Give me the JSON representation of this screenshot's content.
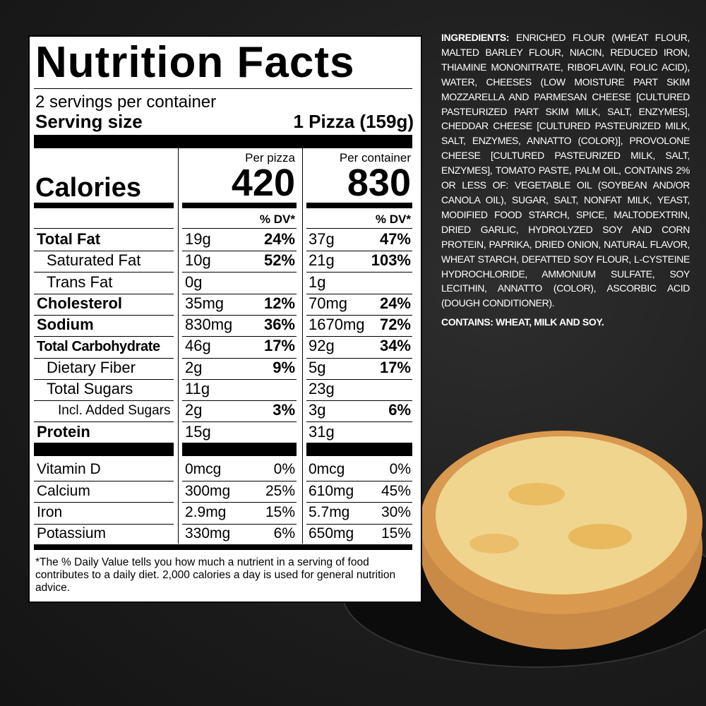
{
  "label": {
    "title": "Nutrition Facts",
    "servings_per_container": "2 servings per container",
    "serving_size_label": "Serving size",
    "serving_size": "1 Pizza (159g)",
    "col_headers": [
      "Per pizza",
      "Per container"
    ],
    "calories_label": "Calories",
    "calories": [
      "420",
      "830"
    ],
    "dv_headers": [
      "% DV*",
      "% DV*"
    ],
    "nutrients": [
      {
        "name": "Total Fat",
        "pizza": "19g",
        "pizza_dv": "24%",
        "container": "37g",
        "container_dv": "47%"
      },
      {
        "name": "Saturated Fat",
        "pizza": "10g",
        "pizza_dv": "52%",
        "container": "21g",
        "container_dv": "103%"
      },
      {
        "name": "Trans Fat",
        "pizza": "0g",
        "container": "1g"
      },
      {
        "name": "Cholesterol",
        "pizza": "35mg",
        "pizza_dv": "12%",
        "container": "70mg",
        "container_dv": "24%"
      },
      {
        "name": "Sodium",
        "pizza": "830mg",
        "pizza_dv": "36%",
        "container": "1670mg",
        "container_dv": "72%"
      },
      {
        "name": "Total Carbohydrate",
        "pizza": "46g",
        "pizza_dv": "17%",
        "container": "92g",
        "container_dv": "34%"
      },
      {
        "name": "Dietary Fiber",
        "pizza": "2g",
        "pizza_dv": "9%",
        "container": "5g",
        "container_dv": "17%"
      },
      {
        "name": "Total Sugars",
        "pizza": "11g",
        "container": "23g"
      },
      {
        "name": "Incl. Added Sugars",
        "pizza": "2g",
        "pizza_dv": "3%",
        "container": "3g",
        "container_dv": "6%"
      },
      {
        "name": "Protein",
        "pizza": "15g",
        "container": "31g"
      }
    ],
    "vitamins": [
      {
        "name": "Vitamin D",
        "pizza": "0mcg",
        "pizza_dv": "0%",
        "container": "0mcg",
        "container_dv": "0%"
      },
      {
        "name": "Calcium",
        "pizza": "300mg",
        "pizza_dv": "25%",
        "container": "610mg",
        "container_dv": "45%"
      },
      {
        "name": "Iron",
        "pizza": "2.9mg",
        "pizza_dv": "15%",
        "container": "5.7mg",
        "container_dv": "30%"
      },
      {
        "name": "Potassium",
        "pizza": "330mg",
        "pizza_dv": "6%",
        "container": "650mg",
        "container_dv": "15%"
      }
    ],
    "footnote": "*The % Daily Value tells you how much a nutrient in a serving of food contributes to a daily diet. 2,000 calories a day is used for general nutrition advice."
  },
  "ingredients": {
    "heading": "INGREDIENTS:",
    "text": "ENRICHED FLOUR (WHEAT FLOUR, MALTED BARLEY FLOUR, NIACIN, REDUCED IRON, THIAMINE MONONITRATE, RIBOFLAVIN, FOLIC ACID), WATER, CHEESES (LOW MOISTURE PART SKIM MOZZARELLA AND PARMESAN CHEESE [CULTURED PASTEURIZED PART SKIM MILK, SALT, ENZYMES], CHEDDAR CHEESE [CULTURED PASTEURIZED MILK, SALT, ENZYMES, ANNATTO (COLOR)], PROVOLONE CHEESE [CULTURED PASTEURIZED MILK, SALT, ENZYMES], TOMATO PASTE, PALM OIL, CONTAINS 2% OR LESS OF: VEGETABLE OIL (SOYBEAN AND/OR CANOLA OIL), SUGAR, SALT, NONFAT MILK, YEAST, MODIFIED FOOD STARCH, SPICE, MALTODEXTRIN, DRIED GARLIC, HYDROLYZED SOY AND CORN PROTEIN, PAPRIKA, DRIED ONION, NATURAL FLAVOR, WHEAT STARCH, DEFATTED SOY FLOUR, L-CYSTEINE HYDROCHLORIDE, AMMONIUM SULFATE, SOY LECITHIN, ANNATTO (COLOR), ASCORBIC ACID (DOUGH CONDITIONER).",
    "contains_heading": "CONTAINS:",
    "contains": "WHEAT, MILK AND SOY."
  }
}
